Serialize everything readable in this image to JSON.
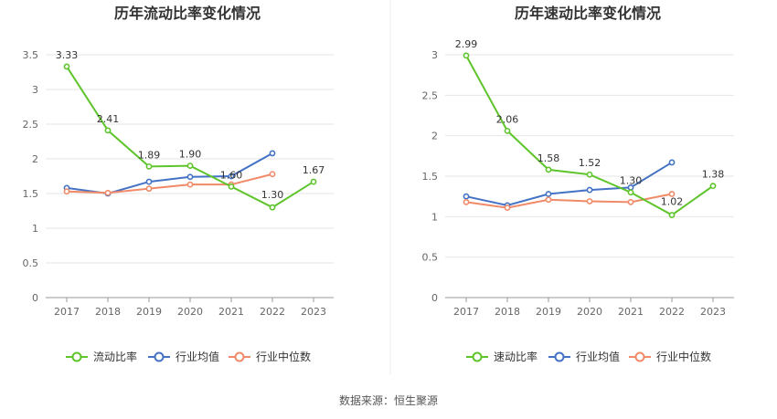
{
  "source_label": "数据来源：恒生聚源",
  "colors": {
    "company": "#5ec42b",
    "industry_avg": "#4472c4",
    "industry_median": "#f08a68",
    "grid": "#e6e6e6",
    "axis": "#666666",
    "title": "#333333"
  },
  "chart_data": [
    {
      "type": "line",
      "title": "历年流动比率变化情况",
      "x": [
        "2017",
        "2018",
        "2019",
        "2020",
        "2021",
        "2022",
        "2023"
      ],
      "ylim": [
        0,
        3.5
      ],
      "yticks": [
        "0",
        "0.5",
        "1",
        "1.5",
        "2",
        "2.5",
        "3",
        "3.5"
      ],
      "legend_position": "bottom",
      "series": [
        {
          "name": "流动比率",
          "color_key": "company",
          "values": [
            3.33,
            2.41,
            1.89,
            1.9,
            1.6,
            1.3,
            1.67
          ],
          "labels": [
            "3.33",
            "2.41",
            "1.89",
            "1.90",
            "1.60",
            "1.30",
            "1.67"
          ]
        },
        {
          "name": "行业均值",
          "color_key": "industry_avg",
          "values": [
            1.58,
            1.5,
            1.67,
            1.74,
            1.75,
            2.08,
            null
          ]
        },
        {
          "name": "行业中位数",
          "color_key": "industry_median",
          "values": [
            1.53,
            1.51,
            1.57,
            1.63,
            1.63,
            1.78,
            null
          ]
        }
      ]
    },
    {
      "type": "line",
      "title": "历年速动比率变化情况",
      "x": [
        "2017",
        "2018",
        "2019",
        "2020",
        "2021",
        "2022",
        "2023"
      ],
      "ylim": [
        0,
        3
      ],
      "yticks": [
        "0",
        "0.5",
        "1",
        "1.5",
        "2",
        "2.5",
        "3"
      ],
      "legend_position": "bottom",
      "series": [
        {
          "name": "速动比率",
          "color_key": "company",
          "values": [
            2.99,
            2.06,
            1.58,
            1.52,
            1.3,
            1.02,
            1.38
          ],
          "labels": [
            "2.99",
            "2.06",
            "1.58",
            "1.52",
            "1.30",
            "1.02",
            "1.38"
          ]
        },
        {
          "name": "行业均值",
          "color_key": "industry_avg",
          "values": [
            1.25,
            1.14,
            1.28,
            1.33,
            1.36,
            1.67,
            null
          ]
        },
        {
          "name": "行业中位数",
          "color_key": "industry_median",
          "values": [
            1.18,
            1.11,
            1.21,
            1.19,
            1.18,
            1.28,
            null
          ]
        }
      ]
    }
  ]
}
